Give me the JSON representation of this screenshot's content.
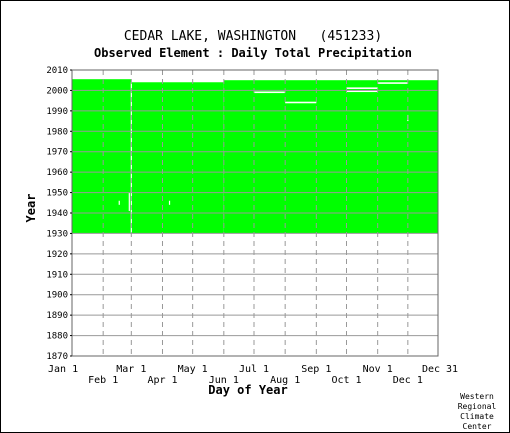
{
  "chart_data": {
    "type": "heatmap",
    "title": "CEDAR LAKE, WASHINGTON   (451233)",
    "subtitle": "Observed Element : Daily Total Precipitation",
    "xlabel": "Day of Year",
    "ylabel": "Year",
    "xlim": [
      1,
      365
    ],
    "ylim": [
      1870,
      2010
    ],
    "x_ticks_upper": [
      {
        "label": "Jan 1",
        "day": 1
      },
      {
        "label": "Mar 1",
        "day": 60
      },
      {
        "label": "May 1",
        "day": 121
      },
      {
        "label": "Jul 1",
        "day": 182
      },
      {
        "label": "Sep 1",
        "day": 244
      },
      {
        "label": "Nov 1",
        "day": 305
      },
      {
        "label": "Dec 31",
        "day": 365
      }
    ],
    "x_ticks_lower": [
      {
        "label": "Feb 1",
        "day": 32
      },
      {
        "label": "Apr 1",
        "day": 91
      },
      {
        "label": "Jun 1",
        "day": 152
      },
      {
        "label": "Aug 1",
        "day": 213
      },
      {
        "label": "Oct 1",
        "day": 274
      },
      {
        "label": "Dec 1",
        "day": 335
      }
    ],
    "y_ticks": [
      1870,
      1880,
      1890,
      1900,
      1910,
      1920,
      1930,
      1940,
      1950,
      1960,
      1970,
      1980,
      1990,
      2000,
      2010
    ],
    "grid": true,
    "fill_color": "#00ff00",
    "data_blocks": [
      {
        "day_start": 1,
        "day_end": 60,
        "year_start": 1930,
        "year_end": 2005.5
      },
      {
        "day_start": 60,
        "day_end": 152,
        "year_start": 1930,
        "year_end": 2004
      },
      {
        "day_start": 152,
        "day_end": 365,
        "year_start": 1930,
        "year_end": 2005
      }
    ],
    "gaps": [
      {
        "day_start": 182,
        "day_end": 213,
        "year": 1999
      },
      {
        "day_start": 213,
        "day_end": 244,
        "year": 1994
      },
      {
        "day_start": 274,
        "day_end": 305,
        "year": 2001
      },
      {
        "day_start": 274,
        "day_end": 305,
        "year": 1999.5
      },
      {
        "day_start": 305,
        "day_end": 335,
        "year": 2003.5
      }
    ],
    "missing_days": [
      {
        "day": 60,
        "year_start": 1930,
        "year_end": 2004
      },
      {
        "day": 58,
        "year_start": 1941,
        "year_end": 1950
      },
      {
        "day": 48,
        "year_start": 1944,
        "year_end": 1946
      },
      {
        "day": 98,
        "year_start": 1944,
        "year_end": 1946
      },
      {
        "day": 335,
        "year_start": 1985,
        "year_end": 1988
      }
    ]
  },
  "credit": {
    "lines": [
      "Western",
      "Regional",
      "Climate",
      "Center"
    ]
  }
}
